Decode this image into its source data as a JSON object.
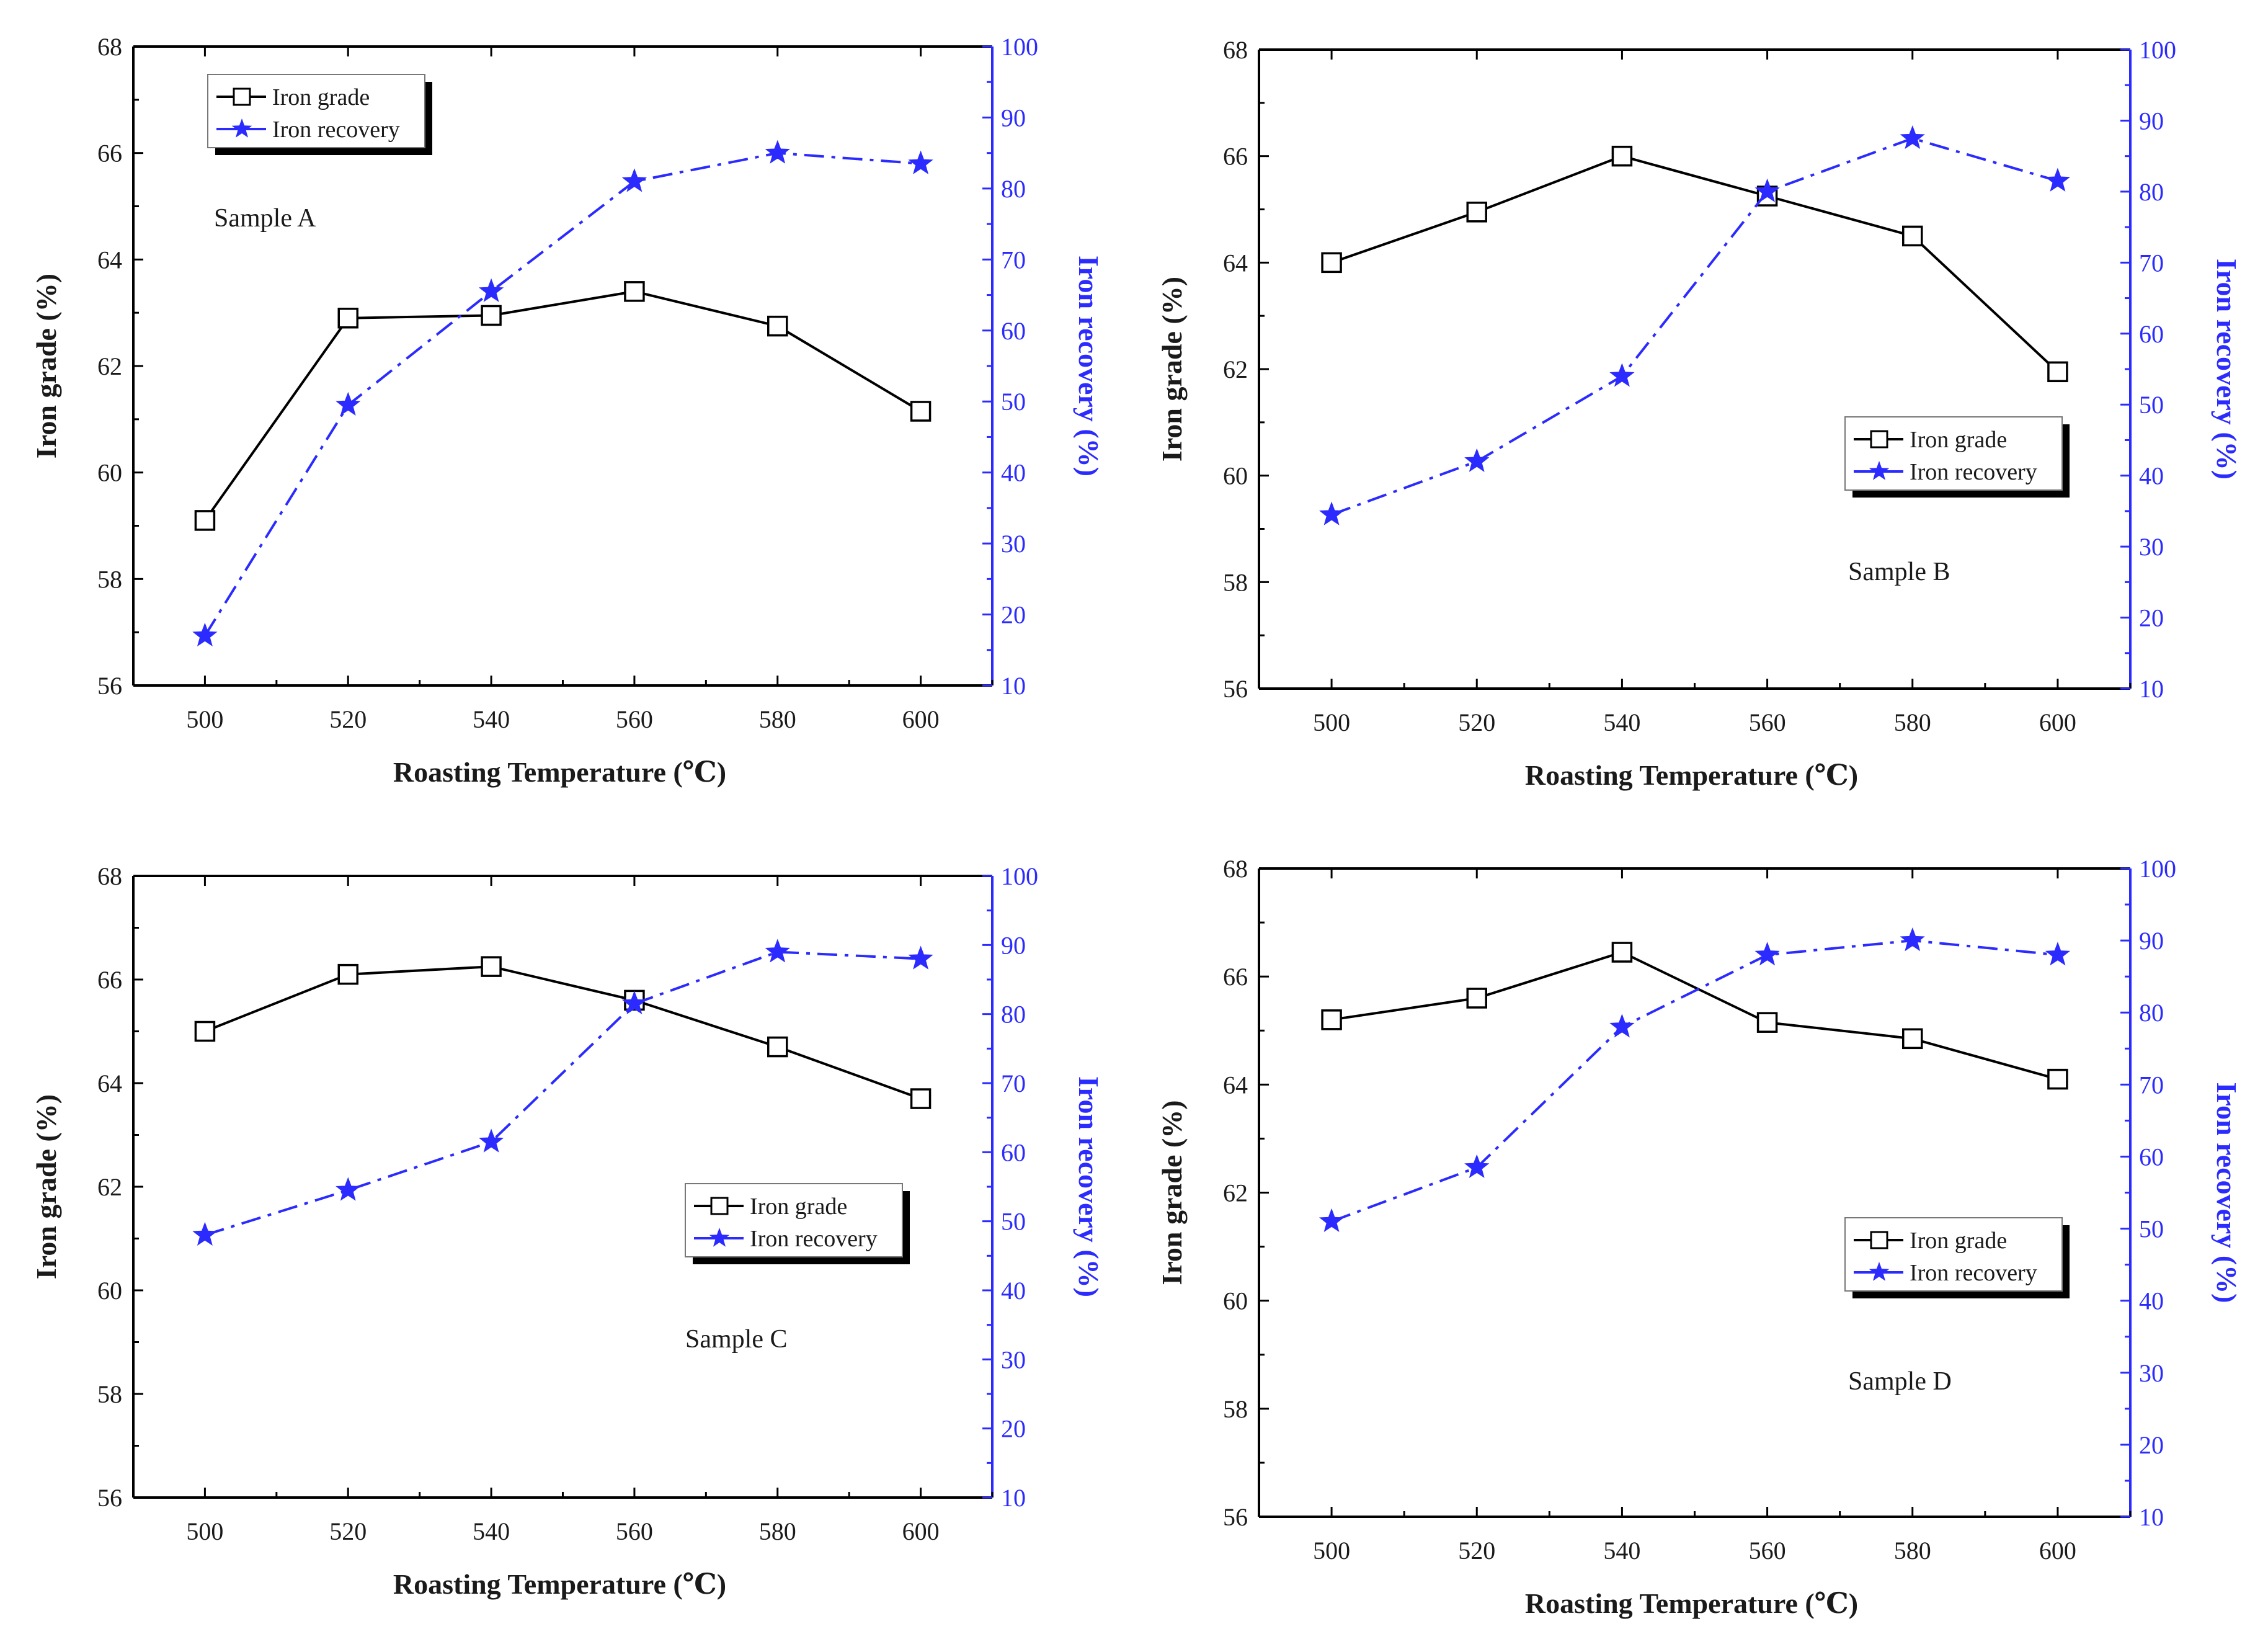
{
  "figure": {
    "colors": {
      "grade": "#000000",
      "recovery": "#2b2bff",
      "frame": "#000000",
      "right_axis": "#2b2bff"
    }
  },
  "chart_data": [
    {
      "type": "line",
      "title": "Sample A",
      "xlabel": "Roasting Temperature (℃)",
      "ylabel": "Iron grade (%)",
      "y2label": "Iron recovery (%)",
      "x": [
        500,
        520,
        540,
        560,
        580,
        600
      ],
      "xlim": [
        490,
        610
      ],
      "ylim": [
        56,
        68
      ],
      "y2lim": [
        10,
        100
      ],
      "xticks": [
        500,
        520,
        540,
        560,
        580,
        600
      ],
      "yticks": [
        56,
        58,
        60,
        62,
        64,
        66,
        68
      ],
      "y2ticks": [
        10,
        20,
        30,
        40,
        50,
        60,
        70,
        80,
        90,
        100
      ],
      "legend_position": "top-left",
      "series": [
        {
          "name": "Iron grade",
          "axis": "left",
          "marker": "square",
          "style": "solid",
          "values": [
            59.1,
            62.9,
            62.95,
            63.4,
            62.75,
            61.15
          ]
        },
        {
          "name": "Iron recovery",
          "axis": "right",
          "marker": "star",
          "style": "dash-dot",
          "values": [
            17,
            49.5,
            65.5,
            81,
            85,
            83.5
          ]
        }
      ]
    },
    {
      "type": "line",
      "title": "Sample B",
      "xlabel": "Roasting Temperature (℃)",
      "ylabel": "Iron grade (%)",
      "y2label": "Iron recovery (%)",
      "x": [
        500,
        520,
        540,
        560,
        580,
        600
      ],
      "xlim": [
        490,
        610
      ],
      "ylim": [
        56,
        68
      ],
      "y2lim": [
        10,
        100
      ],
      "xticks": [
        500,
        520,
        540,
        560,
        580,
        600
      ],
      "yticks": [
        56,
        58,
        60,
        62,
        64,
        66,
        68
      ],
      "y2ticks": [
        10,
        20,
        30,
        40,
        50,
        60,
        70,
        80,
        90,
        100
      ],
      "legend_position": "middle-right",
      "series": [
        {
          "name": "Iron grade",
          "axis": "left",
          "marker": "square",
          "style": "solid",
          "values": [
            64.0,
            64.95,
            66.0,
            65.25,
            64.5,
            61.95
          ]
        },
        {
          "name": "Iron recovery",
          "axis": "right",
          "marker": "star",
          "style": "dash-dot",
          "values": [
            34.5,
            42,
            54,
            80,
            87.5,
            81.5
          ]
        }
      ]
    },
    {
      "type": "line",
      "title": "Sample C",
      "xlabel": "Roasting Temperature (℃)",
      "ylabel": "Iron grade (%)",
      "y2label": "Iron recovery (%)",
      "x": [
        500,
        520,
        540,
        560,
        580,
        600
      ],
      "xlim": [
        490,
        610
      ],
      "ylim": [
        56,
        68
      ],
      "y2lim": [
        10,
        100
      ],
      "xticks": [
        500,
        520,
        540,
        560,
        580,
        600
      ],
      "yticks": [
        56,
        58,
        60,
        62,
        64,
        66,
        68
      ],
      "y2ticks": [
        10,
        20,
        30,
        40,
        50,
        60,
        70,
        80,
        90,
        100
      ],
      "legend_position": "middle-right",
      "series": [
        {
          "name": "Iron grade",
          "axis": "left",
          "marker": "square",
          "style": "solid",
          "values": [
            65.0,
            66.1,
            66.25,
            65.6,
            64.7,
            63.7
          ]
        },
        {
          "name": "Iron recovery",
          "axis": "right",
          "marker": "star",
          "style": "dash-dot",
          "values": [
            48,
            54.5,
            61.5,
            81.5,
            89,
            88
          ]
        }
      ]
    },
    {
      "type": "line",
      "title": "Sample D",
      "xlabel": "Roasting Temperature (℃)",
      "ylabel": "Iron grade (%)",
      "y2label": "Iron recovery (%)",
      "x": [
        500,
        520,
        540,
        560,
        580,
        600
      ],
      "xlim": [
        490,
        610
      ],
      "ylim": [
        56,
        68
      ],
      "y2lim": [
        10,
        100
      ],
      "xticks": [
        500,
        520,
        540,
        560,
        580,
        600
      ],
      "yticks": [
        56,
        58,
        60,
        62,
        64,
        66,
        68
      ],
      "y2ticks": [
        10,
        20,
        30,
        40,
        50,
        60,
        70,
        80,
        90,
        100
      ],
      "legend_position": "middle-right",
      "series": [
        {
          "name": "Iron grade",
          "axis": "left",
          "marker": "square",
          "style": "solid",
          "values": [
            65.2,
            65.6,
            66.45,
            65.15,
            64.85,
            64.1
          ]
        },
        {
          "name": "Iron recovery",
          "axis": "right",
          "marker": "star",
          "style": "dash-dot",
          "values": [
            51,
            58.5,
            78,
            88,
            90,
            88
          ]
        }
      ]
    }
  ]
}
